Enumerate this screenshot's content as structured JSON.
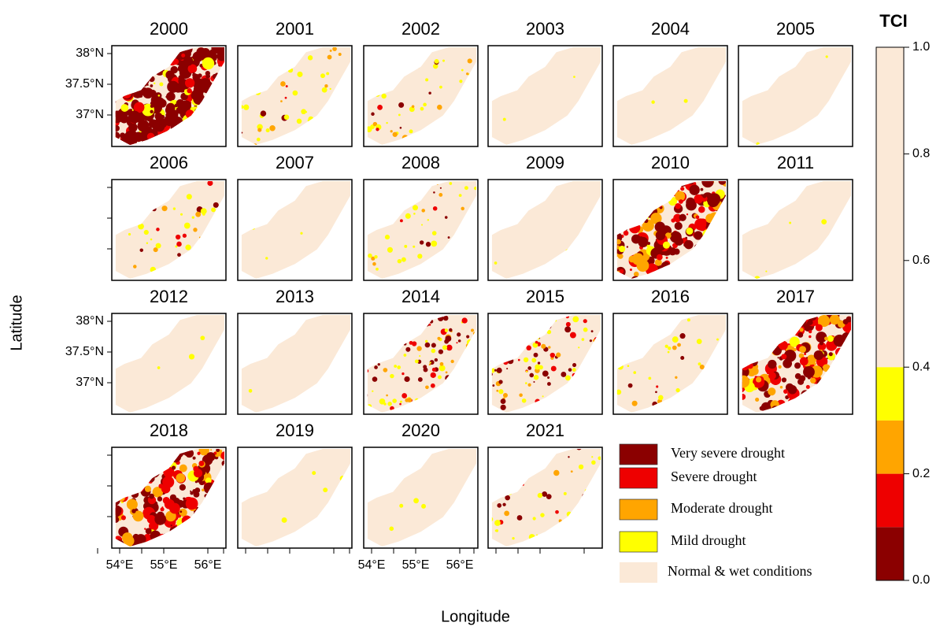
{
  "panels": [
    {
      "title": "2000"
    },
    {
      "title": "2001"
    },
    {
      "title": "2002"
    },
    {
      "title": "2003"
    },
    {
      "title": "2004"
    },
    {
      "title": "2005"
    },
    {
      "title": "2006"
    },
    {
      "title": "2007"
    },
    {
      "title": "2008"
    },
    {
      "title": "2009"
    },
    {
      "title": "2010"
    },
    {
      "title": "2011"
    },
    {
      "title": "2012"
    },
    {
      "title": "2013"
    },
    {
      "title": "2014"
    },
    {
      "title": "2015"
    },
    {
      "title": "2016"
    },
    {
      "title": "2017"
    },
    {
      "title": "2018"
    },
    {
      "title": "2019"
    },
    {
      "title": "2020"
    },
    {
      "title": "2021"
    }
  ],
  "y_label": "Latitude",
  "x_label": "Longitude",
  "lat_ticks": [
    {
      "value": 38,
      "label": "38°N"
    },
    {
      "value": 37.5,
      "label": "37.5°N"
    },
    {
      "value": 37,
      "label": "37°N"
    }
  ],
  "lon_ticks": [
    {
      "value": 54,
      "label": "54°E"
    },
    {
      "value": 55,
      "label": "55°E"
    },
    {
      "value": 56,
      "label": "56°E"
    }
  ],
  "legend": [
    {
      "label": "Very severe drought",
      "color": "#8b0000"
    },
    {
      "label": "Severe drought",
      "color": "#ee0000"
    },
    {
      "label": "Moderate drought",
      "color": "#ffa500"
    },
    {
      "label": "Mild drought",
      "color": "#ffff00"
    },
    {
      "label": "Normal & wet conditions",
      "color": "#fbe9d7"
    }
  ],
  "colorbar": {
    "title": "TCI",
    "lim": [
      0,
      1
    ],
    "bins": [
      0,
      0.1,
      0.2,
      0.3,
      0.4,
      1
    ],
    "colors": [
      "#8b0000",
      "#ee0000",
      "#ffa500",
      "#ffff00",
      "#fbe9d7"
    ],
    "ticks": [
      {
        "value": 0,
        "label": "0.0"
      },
      0.2,
      0.4,
      0.6,
      0.8,
      {
        "value": 1,
        "label": "1.0"
      }
    ]
  }
}
